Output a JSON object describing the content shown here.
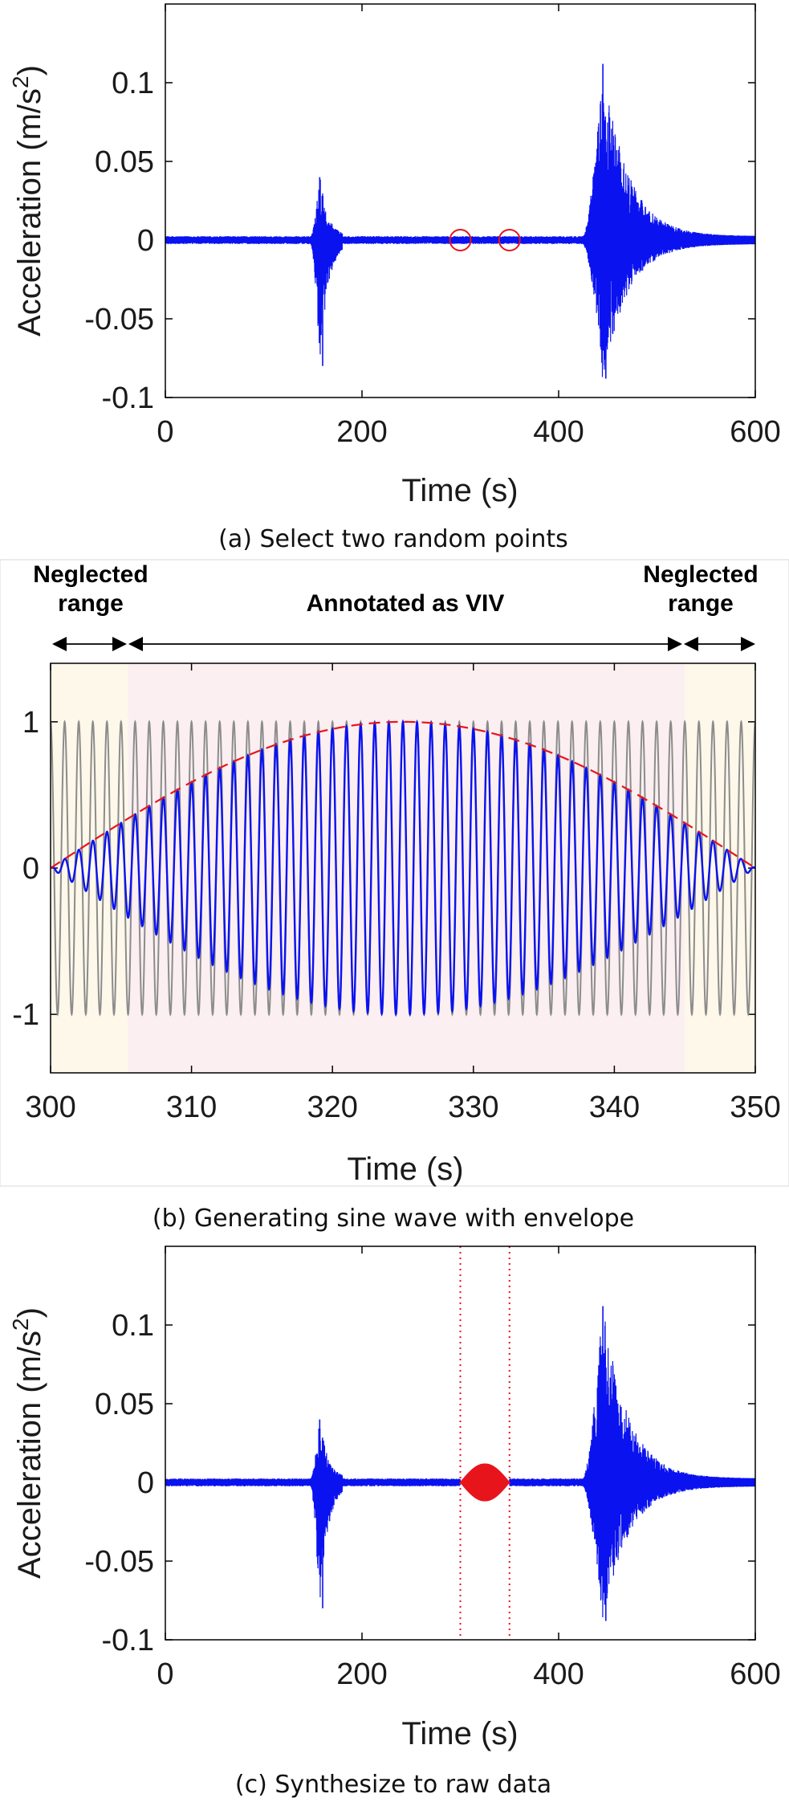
{
  "colors": {
    "signal": "#0a12f0",
    "highlight": "#e8141c",
    "reference_sine": "#8c8c8c",
    "neglected_label": "#c46a1e",
    "annotated_label": "#e8141c",
    "neglected_bg": "#fdf8ea",
    "annotated_bg": "#fbeff1"
  },
  "chart_data": [
    {
      "id": "a",
      "type": "line",
      "caption": "(a) Select two random points",
      "xlabel": "Time (s)",
      "ylabel_main": "Acceleration (m/s",
      "ylabel_sup": "2",
      "ylabel_tail": ")",
      "xlim": [
        0,
        600
      ],
      "ylim": [
        -0.1,
        0.15
      ],
      "xticks": [
        0,
        200,
        400,
        600
      ],
      "xtick_labels": [
        "0",
        "200",
        "400",
        "600"
      ],
      "yticks": [
        -0.1,
        -0.05,
        0,
        0.05,
        0.1
      ],
      "ytick_labels": [
        "-0.1",
        "-0.05",
        "0",
        "0.05",
        "0.1"
      ],
      "series": [
        {
          "name": "Acceleration",
          "noise_amplitude": 0.0025,
          "bursts": [
            {
              "start": 148,
              "end": 180,
              "peak_time": 157,
              "peak_pos": 0.04,
              "peak_neg": -0.08,
              "decay": 8
            },
            {
              "start": 425,
              "end": 600,
              "peak_time": 445,
              "peak_pos": 0.112,
              "peak_neg": -0.088,
              "decay": 25
            }
          ]
        }
      ],
      "selected_points": [
        {
          "time": 300,
          "value": 0
        },
        {
          "time": 350,
          "value": 0
        }
      ]
    },
    {
      "id": "b",
      "type": "line",
      "caption": "(b) Generating sine wave with envelope",
      "xlabel": "Time (s)",
      "xlim": [
        300,
        350
      ],
      "ylim": [
        -1.4,
        1.4
      ],
      "xticks": [
        300,
        310,
        320,
        330,
        340,
        350
      ],
      "xtick_labels": [
        "300",
        "310",
        "320",
        "330",
        "340",
        "350"
      ],
      "yticks": [
        -1,
        0,
        1
      ],
      "ytick_labels": [
        "-1",
        "0",
        "1"
      ],
      "frequency_hz": 1.0,
      "series": [
        {
          "name": "Sine wave",
          "amplitude": 1
        },
        {
          "name": "Enveloped sine wave",
          "envelope": "half-sine"
        },
        {
          "name": "Envelope",
          "style": "dashed"
        }
      ],
      "regions": [
        {
          "label_line1": "Neglected",
          "label_line2": "range",
          "start": 300,
          "end": 305.5,
          "kind": "neglected"
        },
        {
          "label_line1": "Annotated as VIV",
          "label_line2": "",
          "start": 305.5,
          "end": 345,
          "kind": "annotated"
        },
        {
          "label_line1": "Neglected",
          "label_line2": "range",
          "start": 345,
          "end": 350,
          "kind": "neglected"
        }
      ]
    },
    {
      "id": "c",
      "type": "line",
      "caption": "(c) Synthesize to raw data",
      "xlabel": "Time (s)",
      "ylabel_main": "Acceleration (m/s",
      "ylabel_sup": "2",
      "ylabel_tail": ")",
      "xlim": [
        0,
        600
      ],
      "ylim": [
        -0.1,
        0.15
      ],
      "xticks": [
        0,
        200,
        400,
        600
      ],
      "xtick_labels": [
        "0",
        "200",
        "400",
        "600"
      ],
      "yticks": [
        -0.1,
        -0.05,
        0,
        0.05,
        0.1
      ],
      "ytick_labels": [
        "-0.1",
        "-0.05",
        "0",
        "0.05",
        "0.1"
      ],
      "synthesized_segment": {
        "start": 300,
        "end": 350,
        "peak_amplitude": 0.012
      },
      "marker_lines": [
        300,
        350
      ]
    }
  ]
}
